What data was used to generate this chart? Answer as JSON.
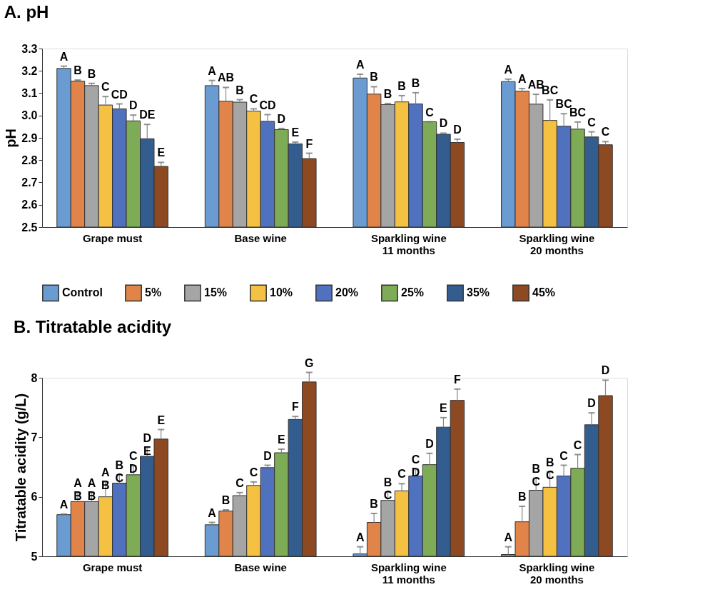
{
  "chart_data": [
    {
      "type": "bar",
      "title": "A. pH",
      "ylabel": "pH",
      "categories": [
        "Grape must",
        "Base wine",
        "Sparkling wine\n11 months",
        "Sparkling wine\n20 months"
      ],
      "ylim": [
        2.5,
        3.3
      ],
      "yticks": [
        2.5,
        2.6,
        2.7,
        2.8,
        2.9,
        {
          "value": 3,
          "label": "3.0"
        },
        3.1,
        3.2,
        3.3
      ],
      "grid": false,
      "legend": "bottom",
      "series": [
        {
          "name": "Control",
          "color": "#6a9bd1",
          "values": [
            3.211,
            3.134,
            3.168,
            3.152
          ],
          "errors": [
            0.01,
            0.023,
            0.017,
            0.011
          ],
          "value_labels": [
            "A",
            "A",
            "A",
            "A"
          ]
        },
        {
          "name": "5%",
          "color": "#e0844a",
          "values": [
            3.154,
            3.064,
            3.096,
            3.109
          ],
          "errors": [
            0.005,
            0.062,
            0.033,
            0.012
          ],
          "value_labels": [
            "B",
            "AB",
            "B",
            "A"
          ]
        },
        {
          "name": "15%",
          "color": "#a5a5a5",
          "values": [
            3.134,
            3.06,
            3.049,
            3.051
          ],
          "errors": [
            0.01,
            0.011,
            0.005,
            0.044
          ],
          "value_labels": [
            "B",
            "B",
            "B",
            "AB"
          ]
        },
        {
          "name": "10%",
          "color": "#f4c143",
          "values": [
            3.047,
            3.02,
            3.061,
            2.978
          ],
          "errors": [
            0.038,
            0.01,
            0.028,
            0.092
          ],
          "value_labels": [
            "C",
            "C",
            "B",
            "BC"
          ]
        },
        {
          "name": "20%",
          "color": "#4f71be",
          "values": [
            3.03,
            2.974,
            3.052,
            2.952
          ],
          "errors": [
            0.022,
            0.03,
            0.05,
            0.056
          ],
          "value_labels": [
            "CD",
            "CD",
            "B",
            "BC"
          ]
        },
        {
          "name": "25%",
          "color": "#7eab55",
          "values": [
            2.976,
            2.937,
            2.972,
            2.939
          ],
          "errors": [
            0.026,
            0.005,
            null,
            0.032
          ],
          "value_labels": [
            "D",
            "D",
            "C",
            "BC"
          ]
        },
        {
          "name": "35%",
          "color": "#335c8f",
          "values": [
            2.896,
            2.873,
            2.916,
            2.904
          ],
          "errors": [
            0.064,
            0.008,
            0.005,
            0.023
          ],
          "value_labels": [
            "DE",
            "E",
            "D",
            "C"
          ]
        },
        {
          "name": "45%",
          "color": "#8d4a22",
          "values": [
            2.772,
            2.807,
            2.879,
            2.869
          ],
          "errors": [
            0.018,
            0.024,
            0.015,
            0.014
          ],
          "value_labels": [
            "E",
            "F",
            "D",
            "C"
          ]
        }
      ]
    },
    {
      "type": "bar",
      "title": "B. Titratable acidity",
      "ylabel": "Titratable acidity (g/L)",
      "categories": [
        "Grape must",
        "Base wine",
        "Sparkling wine\n11 months",
        "Sparkling wine\n20 months"
      ],
      "ylim": [
        5,
        8
      ],
      "yticks": [
        5,
        6,
        7,
        8
      ],
      "grid": false,
      "series": [
        {
          "color": "#6a9bd1",
          "values": [
            5.7,
            5.53,
            5.04,
            5.03
          ],
          "errors": [
            0.01,
            0.04,
            0.12,
            0.13
          ],
          "value_labels": [
            "A",
            "A",
            "A",
            "A"
          ]
        },
        {
          "color": "#e0844a",
          "values": [
            5.92,
            5.76,
            5.57,
            5.58
          ],
          "errors": [
            0.15,
            0.02,
            0.15,
            0.26
          ],
          "value_labels": [
            "A\nB",
            "B",
            "B",
            "B"
          ]
        },
        {
          "color": "#a5a5a5",
          "values": [
            5.92,
            6.02,
            5.94,
            6.11
          ],
          "errors": [
            0.15,
            0.05,
            0.14,
            0.2
          ],
          "value_labels": [
            "A\nB",
            "C",
            "B\nC",
            "B\nC"
          ]
        },
        {
          "color": "#f4c143",
          "values": [
            6.0,
            6.19,
            6.1,
            6.16
          ],
          "errors": [
            0.25,
            0.06,
            0.12,
            0.26
          ],
          "value_labels": [
            "A\nB",
            "C",
            "C",
            "B\nC"
          ]
        },
        {
          "color": "#4f71be",
          "values": [
            6.23,
            6.49,
            6.35,
            6.35
          ],
          "errors": [
            0.14,
            0.04,
            0.11,
            0.18
          ],
          "value_labels": [
            "B\nC",
            "D",
            "C\nD",
            "C"
          ]
        },
        {
          "color": "#7eab55",
          "values": [
            6.37,
            6.74,
            6.54,
            6.48
          ],
          "errors": [
            0.15,
            0.06,
            0.19,
            0.23
          ],
          "value_labels": [
            "C\nD",
            "E",
            "D",
            "C"
          ]
        },
        {
          "color": "#335c8f",
          "values": [
            6.68,
            7.3,
            7.17,
            7.21
          ],
          "errors": [
            0.15,
            0.05,
            0.16,
            0.2
          ],
          "value_labels": [
            "D\nE",
            "F",
            "E",
            "D"
          ]
        },
        {
          "color": "#8d4a22",
          "values": [
            6.97,
            7.93,
            7.62,
            7.7
          ],
          "errors": [
            0.16,
            0.16,
            0.19,
            0.26
          ],
          "value_labels": [
            "E",
            "G",
            "F",
            "D"
          ]
        }
      ]
    }
  ]
}
